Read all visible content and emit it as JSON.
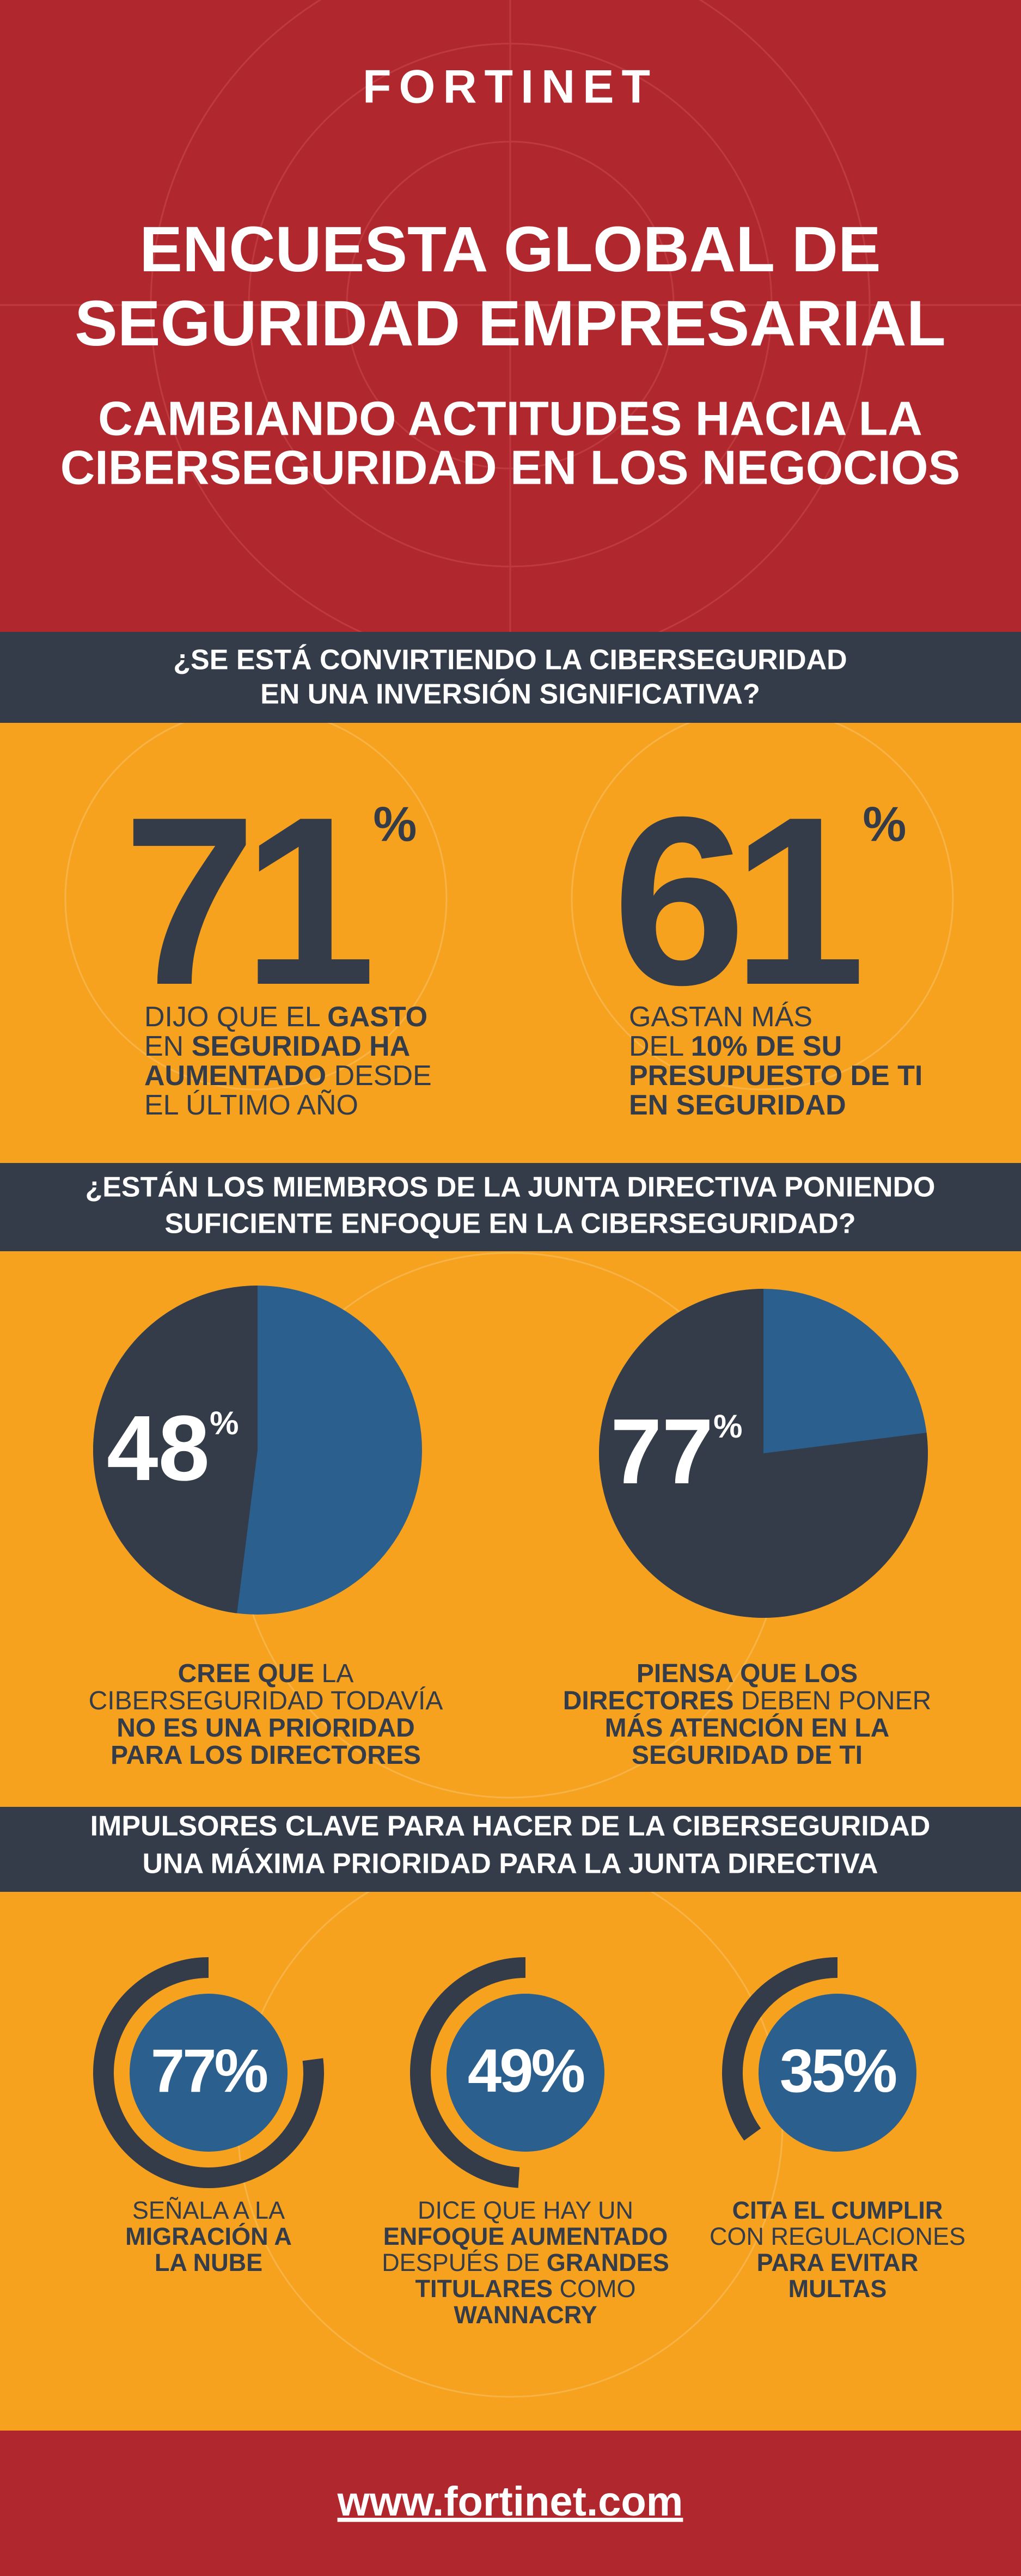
{
  "header": {
    "logo": "FORTINET",
    "title": [
      "ENCUESTA GLOBAL DE",
      "SEGURIDAD EMPRESARIAL"
    ],
    "subtitle": [
      "CAMBIANDO ACTITUDES HACIA LA",
      "CIBERSEGURIDAD EN LOS NEGOCIOS"
    ]
  },
  "sections": [
    {
      "kind": "big-number",
      "question": [
        "¿SE ESTÁ CONVIRTIENDO LA CIBERSEGURIDAD",
        "EN UNA INVERSIÓN SIGNIFICATIVA?"
      ],
      "stats": [
        {
          "value": 71,
          "unit": "%",
          "caption": [
            [
              {
                "text": "DIJO QUE EL ",
                "bold": false
              },
              {
                "text": "GASTO",
                "bold": true
              }
            ],
            [
              {
                "text": "EN ",
                "bold": false
              },
              {
                "text": "SEGURIDAD HA",
                "bold": true
              }
            ],
            [
              {
                "text": "AUMENTADO",
                "bold": true
              },
              {
                "text": " DESDE",
                "bold": false
              }
            ],
            [
              {
                "text": "EL ÚLTIMO AÑO",
                "bold": false
              }
            ]
          ]
        },
        {
          "value": 61,
          "unit": "%",
          "caption": [
            [
              {
                "text": "GASTAN MÁS",
                "bold": false
              }
            ],
            [
              {
                "text": "DEL ",
                "bold": false
              },
              {
                "text": "10% DE SU",
                "bold": true
              }
            ],
            [
              {
                "text": "PRESUPUESTO DE TI",
                "bold": true
              }
            ],
            [
              {
                "text": "EN SEGURIDAD",
                "bold": true
              }
            ]
          ]
        }
      ]
    },
    {
      "kind": "pie",
      "question": [
        "¿ESTÁN LOS MIEMBROS DE LA JUNTA DIRECTIVA PONIENDO",
        "SUFICIENTE ENFOQUE EN LA CIBERSEGURIDAD?"
      ],
      "stats": [
        {
          "value": 48,
          "unit": "%",
          "caption": [
            [
              {
                "text": "CREE QUE",
                "bold": true
              },
              {
                "text": " LA",
                "bold": false
              }
            ],
            [
              {
                "text": "CIBERSEGURIDAD TODAVÍA",
                "bold": false
              }
            ],
            [
              {
                "text": "NO ES UNA PRIORIDAD",
                "bold": true
              }
            ],
            [
              {
                "text": "PARA LOS DIRECTORES",
                "bold": true
              }
            ]
          ]
        },
        {
          "value": 77,
          "unit": "%",
          "caption": [
            [
              {
                "text": "PIENSA QUE LOS",
                "bold": true
              }
            ],
            [
              {
                "text": "DIRECTORES",
                "bold": true
              },
              {
                "text": " DEBEN PONER",
                "bold": false
              }
            ],
            [
              {
                "text": "MÁS ATENCIÓN EN LA",
                "bold": true
              }
            ],
            [
              {
                "text": "SEGURIDAD DE TI",
                "bold": true
              }
            ]
          ]
        }
      ]
    },
    {
      "kind": "ring",
      "question": [
        "IMPULSORES CLAVE PARA HACER DE LA CIBERSEGURIDAD",
        "UNA MÁXIMA PRIORIDAD PARA LA JUNTA DIRECTIVA"
      ],
      "stats": [
        {
          "value": 77,
          "unit": "%",
          "caption": [
            [
              {
                "text": "SEÑALA A LA",
                "bold": false
              }
            ],
            [
              {
                "text": "MIGRACIÓN A",
                "bold": true
              }
            ],
            [
              {
                "text": "LA NUBE",
                "bold": true
              }
            ]
          ]
        },
        {
          "value": 49,
          "unit": "%",
          "caption": [
            [
              {
                "text": "DICE QUE HAY UN",
                "bold": false
              }
            ],
            [
              {
                "text": "ENFOQUE AUMENTADO",
                "bold": true
              }
            ],
            [
              {
                "text": "DESPUÉS DE ",
                "bold": false
              },
              {
                "text": "GRANDES",
                "bold": true
              }
            ],
            [
              {
                "text": "TITULARES",
                "bold": true
              },
              {
                "text": " COMO",
                "bold": false
              }
            ],
            [
              {
                "text": "WANNACRY",
                "bold": true
              }
            ]
          ]
        },
        {
          "value": 35,
          "unit": "%",
          "caption": [
            [
              {
                "text": "CITA EL CUMPLIR",
                "bold": true
              }
            ],
            [
              {
                "text": "CON REGULACIONES",
                "bold": false
              }
            ],
            [
              {
                "text": "PARA EVITAR",
                "bold": true
              }
            ],
            [
              {
                "text": "MULTAS",
                "bold": true
              }
            ]
          ]
        }
      ]
    }
  ],
  "footer": {
    "url": "www.fortinet.com"
  }
}
